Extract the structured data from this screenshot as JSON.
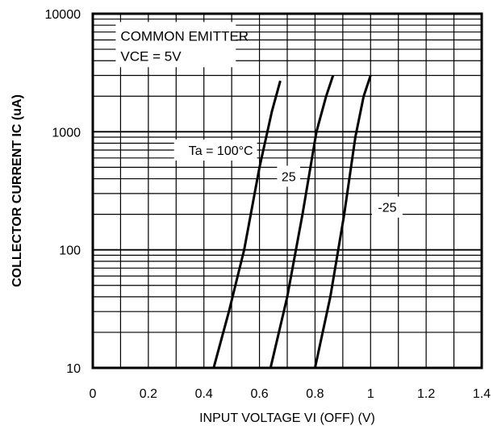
{
  "chart_data": {
    "type": "line",
    "title": "",
    "xlabel": "INPUT VOLTAGE   VI (OFF) (V)",
    "ylabel": "COLLECTOR CURRENT   IC (uA)",
    "xlim": [
      0,
      1.4
    ],
    "ylim": [
      10,
      10000
    ],
    "yscale": "log",
    "grid": true,
    "x_ticks": [
      "0",
      "0.2",
      "0.4",
      "0.6",
      "0.8",
      "1",
      "1.2",
      "1.4"
    ],
    "y_ticks": [
      "10",
      "100",
      "1000",
      "10000"
    ],
    "annotations": {
      "condition_line1": "COMMON EMITTER",
      "condition_line2": "VCE = 5V"
    },
    "series": [
      {
        "name": "Ta = 100°C",
        "points": [
          [
            0.435,
            10
          ],
          [
            0.49,
            30
          ],
          [
            0.545,
            100
          ],
          [
            0.6,
            500
          ],
          [
            0.645,
            1500
          ],
          [
            0.675,
            2700
          ]
        ]
      },
      {
        "name": "25",
        "points": [
          [
            0.64,
            10
          ],
          [
            0.7,
            40
          ],
          [
            0.755,
            200
          ],
          [
            0.805,
            1000
          ],
          [
            0.84,
            2000
          ],
          [
            0.865,
            3000
          ]
        ]
      },
      {
        "name": "-25",
        "points": [
          [
            0.8,
            10
          ],
          [
            0.855,
            40
          ],
          [
            0.905,
            200
          ],
          [
            0.945,
            900
          ],
          [
            0.975,
            2000
          ],
          [
            1.0,
            3000
          ]
        ]
      }
    ],
    "label_anchor_points": [
      [
        0.6,
        700
      ],
      [
        0.705,
        420
      ],
      [
        1.06,
        230
      ]
    ]
  }
}
